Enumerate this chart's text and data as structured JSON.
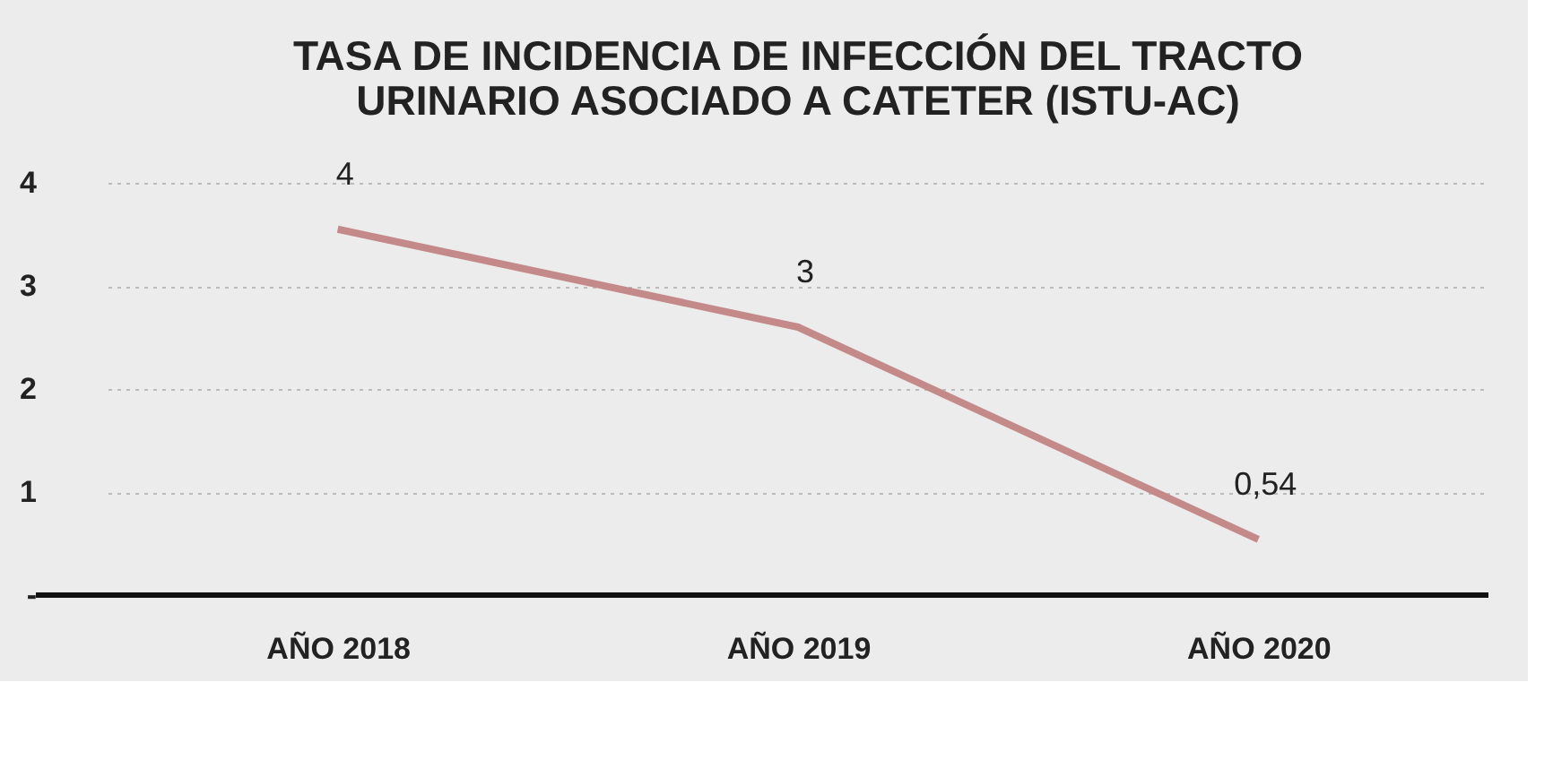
{
  "chart_data": {
    "type": "line",
    "title": [
      "TASA DE INCIDENCIA DE INFECCIÓN DEL TRACTO",
      "URINARIO ASOCIADO A CATETER (ISTU-AC)"
    ],
    "categories": [
      "AÑO 2018",
      "AÑO 2019",
      "AÑO 2020"
    ],
    "series": [
      {
        "color": "#c48a8a",
        "values": [
          3.55,
          2.6,
          0.54
        ],
        "value_labels": [
          "4",
          "3",
          "0,54"
        ]
      }
    ],
    "ylim": [
      0,
      4
    ],
    "yticks": [
      {
        "value": 0,
        "label": "-"
      },
      1,
      2,
      3,
      4
    ],
    "grid": "y",
    "marker": "none",
    "line_style": "solid"
  }
}
